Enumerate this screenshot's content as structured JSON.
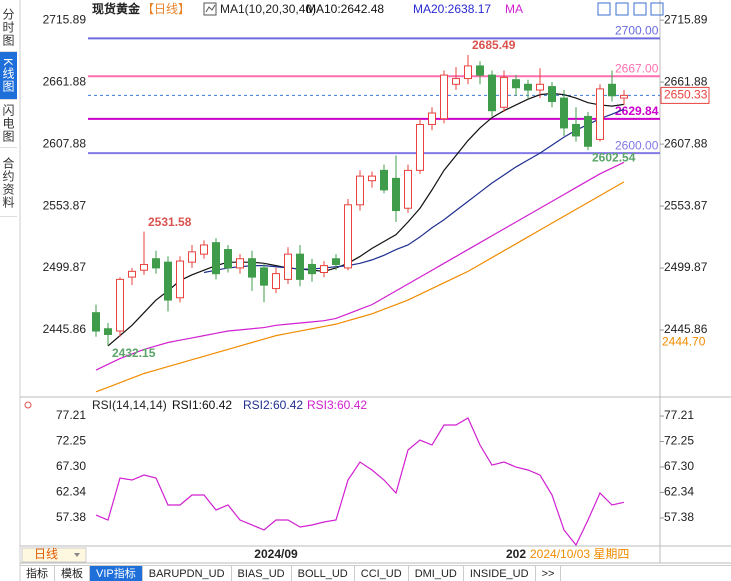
{
  "sidebar": [
    "分时图",
    "K线图",
    "闪电图",
    "合约资料"
  ],
  "sidebar_active": 1,
  "header": {
    "symbol": "现货黄金",
    "period": "【日线】",
    "ma_label": "MA1(10,20,30,40)",
    "ma_items": [
      {
        "text": "MA10:2642.48",
        "color": "#111111"
      },
      {
        "text": "MA20:2638.17",
        "color": "#2a2ad0"
      },
      {
        "text": "MA",
        "color": "#d020d0"
      }
    ]
  },
  "chart_data": [
    {
      "type": "candlestick",
      "open": [
        2461,
        2447,
        2445,
        2492,
        2498,
        2508,
        2505,
        2474,
        2505,
        2512,
        2522,
        2516,
        2500,
        2508,
        2500,
        2482,
        2490,
        2512,
        2503,
        2496,
        2508,
        2500,
        2555,
        2576,
        2585,
        2578,
        2552,
        2585,
        2625,
        2630,
        2660,
        2665,
        2676,
        2668,
        2640,
        2664,
        2660,
        2655,
        2658,
        2648,
        2625,
        2632,
        2612,
        2660,
        2648
      ],
      "high": [
        2468,
        2452,
        2492,
        2500,
        2531.58,
        2515,
        2510,
        2510,
        2520,
        2524,
        2526,
        2520,
        2512,
        2515,
        2504,
        2500,
        2518,
        2520,
        2508,
        2506,
        2512,
        2560,
        2585,
        2584,
        2590,
        2598,
        2590,
        2630,
        2640,
        2672,
        2675,
        2685.49,
        2680,
        2672,
        2672,
        2668,
        2664,
        2674,
        2662,
        2655,
        2640,
        2636,
        2660,
        2672,
        2655
      ],
      "low": [
        2440,
        2432.15,
        2440,
        2485,
        2494,
        2495,
        2462,
        2470,
        2500,
        2508,
        2490,
        2496,
        2495,
        2480,
        2470,
        2478,
        2486,
        2484,
        2488,
        2492,
        2498,
        2498,
        2550,
        2570,
        2565,
        2540,
        2548,
        2582,
        2620,
        2626,
        2655,
        2660,
        2660,
        2632,
        2636,
        2650,
        2648,
        2648,
        2640,
        2615,
        2610,
        2602.54,
        2610,
        2645,
        2642
      ],
      "close": [
        2445,
        2442,
        2490,
        2497,
        2503,
        2500,
        2472,
        2506,
        2514,
        2520,
        2495,
        2500,
        2508,
        2492,
        2485,
        2495,
        2512,
        2490,
        2495,
        2502,
        2503,
        2555,
        2580,
        2580,
        2568,
        2550,
        2585,
        2625,
        2635,
        2668,
        2665,
        2676,
        2668,
        2637,
        2666,
        2657,
        2655,
        2660,
        2645,
        2622,
        2615,
        2606,
        2656,
        2650,
        2650.33
      ],
      "categories": [
        null,
        null,
        null,
        null,
        null,
        null,
        null,
        null,
        null,
        null,
        null,
        null,
        null,
        null,
        null,
        "2024/09",
        null,
        null,
        null,
        null,
        null,
        null,
        null,
        null,
        null,
        null,
        null,
        null,
        null,
        null,
        null,
        null,
        null,
        null,
        null,
        "202",
        null,
        null,
        null,
        null,
        null,
        null,
        null,
        null,
        null
      ],
      "up_color": "#e8423e",
      "down_color": "#3f9c4b",
      "ylim": [
        2391,
        2723
      ],
      "yticks": [
        2715.89,
        2661.88,
        2607.88,
        2553.87,
        2499.87,
        2445.86
      ],
      "series": [
        {
          "color": "#111111",
          "values": [
            null,
            2432,
            2441,
            2450,
            2461,
            2472,
            2480,
            2489,
            2494,
            2498,
            2502,
            2505,
            2505,
            2505,
            2504,
            2502,
            2500,
            2499,
            2498,
            2497,
            2500,
            2504,
            2510,
            2517,
            2523,
            2529,
            2540,
            2552,
            2568,
            2585,
            2598,
            2611,
            2622,
            2631,
            2637,
            2642,
            2647,
            2651,
            2652,
            2651,
            2648,
            2644,
            2642,
            2641,
            2642.48
          ]
        },
        {
          "color": "#1f2f8f",
          "values": [
            null,
            null,
            null,
            null,
            null,
            null,
            null,
            null,
            null,
            2496,
            2498,
            2500,
            2501,
            2502,
            2502,
            2501,
            2500,
            2499,
            2499,
            2500,
            2501,
            2502,
            2504,
            2507,
            2511,
            2516,
            2520,
            2527,
            2535,
            2542,
            2550,
            2558,
            2566,
            2574,
            2581,
            2588,
            2594,
            2600,
            2607,
            2614,
            2620,
            2625,
            2630,
            2634,
            2638.17
          ]
        },
        {
          "color": "#d020d0",
          "values": [
            2411,
            2416,
            2421,
            2425,
            2429,
            2432,
            2435,
            2437,
            2439,
            2441,
            2443,
            2445,
            2446,
            2447,
            2448,
            2450,
            2451,
            2452,
            2453,
            2454,
            2456,
            2460,
            2464,
            2468,
            2474,
            2480,
            2486,
            2492,
            2498,
            2504,
            2510,
            2516,
            2522,
            2528,
            2534,
            2540,
            2546,
            2552,
            2558,
            2564,
            2570,
            2576,
            2582,
            2587,
            2592
          ]
        },
        {
          "color": "#f08c00",
          "values": [
            2392,
            2396,
            2400,
            2404,
            2408,
            2411,
            2414,
            2417,
            2420,
            2423,
            2426,
            2429,
            2432,
            2435,
            2438,
            2441,
            2443,
            2445,
            2447,
            2449,
            2451,
            2454,
            2457,
            2460,
            2464,
            2468,
            2472,
            2477,
            2482,
            2487,
            2492,
            2497,
            2503,
            2509,
            2515,
            2521,
            2527,
            2533,
            2539,
            2545,
            2551,
            2557,
            2563,
            2569,
            2575
          ]
        }
      ],
      "levels": [
        {
          "value": 2700,
          "label": "2700.00",
          "color": "#6b6bdd"
        },
        {
          "value": 2667,
          "label": "2667.00",
          "color": "#ff6fb0"
        },
        {
          "value": 2629.84,
          "label": "2629.84",
          "color": "#cc00cc"
        },
        {
          "value": 2600,
          "label": "2600.00",
          "color": "#8278e6"
        }
      ],
      "last_price": 2650.33,
      "last_price_color": "#e8423e",
      "side_label": {
        "value": 2444.7,
        "label": "2444.70",
        "color": "#f08c00"
      },
      "annotations": [
        {
          "value": 2685.49,
          "candle": 31,
          "color": "#d9534f"
        },
        {
          "value": 2531.58,
          "candle": 4,
          "color": "#d9534f"
        },
        {
          "value": 2432.15,
          "candle": 1,
          "color": "#5aa469"
        },
        {
          "value": 2602.54,
          "candle": 41,
          "color": "#5aa469"
        }
      ]
    },
    {
      "type": "line",
      "title": "RSI(14,14,14)",
      "items": [
        {
          "text": "RSI1:60.42",
          "color": "#111111"
        },
        {
          "text": "RSI2:60.42",
          "color": "#1f2f8f"
        },
        {
          "text": "RSI3:60.42",
          "color": "#d020d0"
        }
      ],
      "ylim": [
        52,
        80
      ],
      "yticks": [
        77.21,
        72.25,
        {
          "value": 67.3,
          "label": "67.30"
        },
        62.34,
        57.38
      ],
      "series": [
        {
          "color": "#d020d0",
          "values": [
            57.95,
            56.98,
            65.15,
            64.76,
            65.73,
            65.15,
            59.9,
            59.9,
            61.84,
            61.84,
            58.93,
            59.9,
            56.98,
            56.01,
            55.04,
            56.98,
            56.98,
            55.62,
            56.01,
            56.59,
            56.98,
            64.76,
            68.26,
            66.71,
            64.76,
            62.23,
            70.6,
            72.54,
            71.57,
            75.46,
            75.46,
            76.82,
            71.57,
            67.68,
            68.26,
            67.29,
            66.71,
            65.73,
            61.84,
            55.04,
            52.12,
            56.98,
            62.23,
            59.9,
            60.42
          ]
        }
      ]
    }
  ],
  "bottom": {
    "period": "日线",
    "cursor_date": "2024/10/03 星期四"
  },
  "tabs": [
    "指标",
    "模板",
    "VIP指标",
    "BARUPDN_UD",
    "BIAS_UD",
    "BOLL_UD",
    "CCI_UD",
    "DMI_UD",
    "INSIDE_UD",
    ">>"
  ],
  "tabs_active": 2
}
